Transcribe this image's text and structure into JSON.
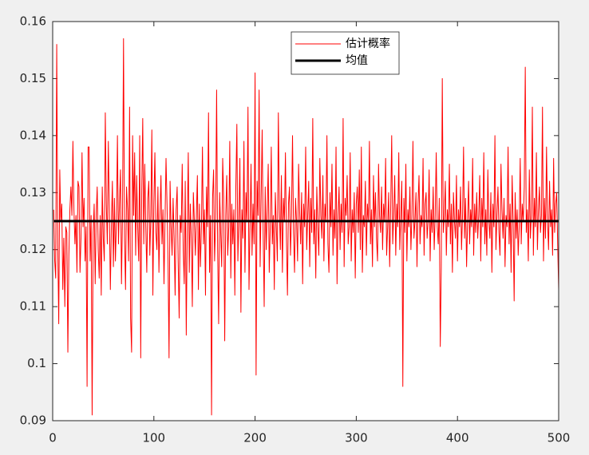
{
  "chart_data": {
    "type": "line",
    "xlim": [
      0,
      500
    ],
    "xticks": [
      0,
      100,
      200,
      300,
      400,
      500
    ],
    "ylim": [
      0.09,
      0.16
    ],
    "yticks": [
      0.09,
      0.1,
      0.11,
      0.12,
      0.13,
      0.14,
      0.15,
      0.16
    ],
    "legend": "north",
    "grid": false,
    "series": [
      {
        "name": "估计概率",
        "color": "#ff0000",
        "line_width": 1,
        "x": [
          1,
          2,
          3,
          4,
          5,
          6,
          7,
          8,
          9,
          10,
          11,
          12,
          13,
          14,
          15,
          16,
          17,
          18,
          19,
          20,
          21,
          22,
          23,
          24,
          25,
          26,
          27,
          28,
          29,
          30,
          31,
          32,
          33,
          34,
          35,
          36,
          37,
          38,
          39,
          40,
          41,
          42,
          43,
          44,
          45,
          46,
          47,
          48,
          49,
          50,
          51,
          52,
          53,
          54,
          55,
          56,
          57,
          58,
          59,
          60,
          61,
          62,
          63,
          64,
          65,
          66,
          67,
          68,
          69,
          70,
          71,
          72,
          73,
          74,
          75,
          76,
          77,
          78,
          79,
          80,
          81,
          82,
          83,
          84,
          85,
          86,
          87,
          88,
          89,
          90,
          91,
          92,
          93,
          94,
          95,
          96,
          97,
          98,
          99,
          100,
          101,
          102,
          103,
          104,
          105,
          106,
          107,
          108,
          109,
          110,
          111,
          112,
          113,
          114,
          115,
          116,
          117,
          118,
          119,
          120,
          121,
          122,
          123,
          124,
          125,
          126,
          127,
          128,
          129,
          130,
          131,
          132,
          133,
          134,
          135,
          136,
          137,
          138,
          139,
          140,
          141,
          142,
          143,
          144,
          145,
          146,
          147,
          148,
          149,
          150,
          151,
          152,
          153,
          154,
          155,
          156,
          157,
          158,
          159,
          160,
          161,
          162,
          163,
          164,
          165,
          166,
          167,
          168,
          169,
          170,
          171,
          172,
          173,
          174,
          175,
          176,
          177,
          178,
          179,
          180,
          181,
          182,
          183,
          184,
          185,
          186,
          187,
          188,
          189,
          190,
          191,
          192,
          193,
          194,
          195,
          196,
          197,
          198,
          199,
          200,
          201,
          202,
          203,
          204,
          205,
          206,
          207,
          208,
          209,
          210,
          211,
          212,
          213,
          214,
          215,
          216,
          217,
          218,
          219,
          220,
          221,
          222,
          223,
          224,
          225,
          226,
          227,
          228,
          229,
          230,
          231,
          232,
          233,
          234,
          235,
          236,
          237,
          238,
          239,
          240,
          241,
          242,
          243,
          244,
          245,
          246,
          247,
          248,
          249,
          250,
          251,
          252,
          253,
          254,
          255,
          256,
          257,
          258,
          259,
          260,
          261,
          262,
          263,
          264,
          265,
          266,
          267,
          268,
          269,
          270,
          271,
          272,
          273,
          274,
          275,
          276,
          277,
          278,
          279,
          280,
          281,
          282,
          283,
          284,
          285,
          286,
          287,
          288,
          289,
          290,
          291,
          292,
          293,
          294,
          295,
          296,
          297,
          298,
          299,
          300,
          301,
          302,
          303,
          304,
          305,
          306,
          307,
          308,
          309,
          310,
          311,
          312,
          313,
          314,
          315,
          316,
          317,
          318,
          319,
          320,
          321,
          322,
          323,
          324,
          325,
          326,
          327,
          328,
          329,
          330,
          331,
          332,
          333,
          334,
          335,
          336,
          337,
          338,
          339,
          340,
          341,
          342,
          343,
          344,
          345,
          346,
          347,
          348,
          349,
          350,
          351,
          352,
          353,
          354,
          355,
          356,
          357,
          358,
          359,
          360,
          361,
          362,
          363,
          364,
          365,
          366,
          367,
          368,
          369,
          370,
          371,
          372,
          373,
          374,
          375,
          376,
          377,
          378,
          379,
          380,
          381,
          382,
          383,
          384,
          385,
          386,
          387,
          388,
          389,
          390,
          391,
          392,
          393,
          394,
          395,
          396,
          397,
          398,
          399,
          400,
          401,
          402,
          403,
          404,
          405,
          406,
          407,
          408,
          409,
          410,
          411,
          412,
          413,
          414,
          415,
          416,
          417,
          418,
          419,
          420,
          421,
          422,
          423,
          424,
          425,
          426,
          427,
          428,
          429,
          430,
          431,
          432,
          433,
          434,
          435,
          436,
          437,
          438,
          439,
          440,
          441,
          442,
          443,
          444,
          445,
          446,
          447,
          448,
          449,
          450,
          451,
          452,
          453,
          454,
          455,
          456,
          457,
          458,
          459,
          460,
          461,
          462,
          463,
          464,
          465,
          466,
          467,
          468,
          469,
          470,
          471,
          472,
          473,
          474,
          475,
          476,
          477,
          478,
          479,
          480,
          481,
          482,
          483,
          484,
          485,
          486,
          487,
          488,
          489,
          490,
          491,
          492,
          493,
          494,
          495,
          496,
          497,
          498,
          499,
          500
        ],
        "values": [
          0.127,
          0.118,
          0.115,
          0.156,
          0.121,
          0.107,
          0.134,
          0.125,
          0.128,
          0.113,
          0.122,
          0.11,
          0.124,
          0.123,
          0.102,
          0.119,
          0.127,
          0.131,
          0.126,
          0.139,
          0.127,
          0.121,
          0.126,
          0.116,
          0.132,
          0.131,
          0.116,
          0.122,
          0.137,
          0.124,
          0.129,
          0.118,
          0.124,
          0.096,
          0.138,
          0.138,
          0.118,
          0.126,
          0.091,
          0.123,
          0.128,
          0.114,
          0.126,
          0.131,
          0.12,
          0.115,
          0.126,
          0.112,
          0.131,
          0.122,
          0.118,
          0.144,
          0.128,
          0.121,
          0.139,
          0.127,
          0.113,
          0.124,
          0.132,
          0.117,
          0.129,
          0.118,
          0.125,
          0.14,
          0.121,
          0.128,
          0.134,
          0.114,
          0.126,
          0.157,
          0.122,
          0.113,
          0.131,
          0.127,
          0.118,
          0.145,
          0.108,
          0.102,
          0.14,
          0.126,
          0.137,
          0.119,
          0.133,
          0.124,
          0.118,
          0.14,
          0.101,
          0.13,
          0.143,
          0.121,
          0.135,
          0.124,
          0.116,
          0.129,
          0.132,
          0.119,
          0.126,
          0.141,
          0.112,
          0.128,
          0.137,
          0.123,
          0.12,
          0.131,
          0.116,
          0.126,
          0.133,
          0.121,
          0.127,
          0.114,
          0.125,
          0.136,
          0.128,
          0.118,
          0.101,
          0.132,
          0.124,
          0.119,
          0.129,
          0.122,
          0.112,
          0.127,
          0.131,
          0.118,
          0.108,
          0.126,
          0.123,
          0.135,
          0.12,
          0.114,
          0.132,
          0.105,
          0.124,
          0.137,
          0.116,
          0.128,
          0.122,
          0.11,
          0.13,
          0.125,
          0.119,
          0.126,
          0.133,
          0.113,
          0.128,
          0.117,
          0.124,
          0.138,
          0.121,
          0.127,
          0.112,
          0.131,
          0.124,
          0.144,
          0.116,
          0.126,
          0.091,
          0.129,
          0.134,
          0.118,
          0.125,
          0.148,
          0.12,
          0.107,
          0.13,
          0.123,
          0.117,
          0.136,
          0.129,
          0.104,
          0.126,
          0.133,
          0.119,
          0.124,
          0.139,
          0.115,
          0.128,
          0.121,
          0.127,
          0.112,
          0.131,
          0.142,
          0.118,
          0.125,
          0.136,
          0.109,
          0.127,
          0.122,
          0.139,
          0.116,
          0.13,
          0.125,
          0.145,
          0.113,
          0.124,
          0.135,
          0.119,
          0.128,
          0.121,
          0.151,
          0.098,
          0.132,
          0.126,
          0.148,
          0.117,
          0.129,
          0.141,
          0.123,
          0.11,
          0.131,
          0.12,
          0.127,
          0.135,
          0.116,
          0.124,
          0.138,
          0.121,
          0.126,
          0.113,
          0.13,
          0.124,
          0.118,
          0.144,
          0.127,
          0.12,
          0.133,
          0.116,
          0.129,
          0.125,
          0.137,
          0.122,
          0.112,
          0.128,
          0.131,
          0.119,
          0.126,
          0.14,
          0.123,
          0.116,
          0.129,
          0.125,
          0.118,
          0.135,
          0.127,
          0.121,
          0.13,
          0.114,
          0.128,
          0.124,
          0.138,
          0.12,
          0.126,
          0.132,
          0.117,
          0.129,
          0.123,
          0.143,
          0.121,
          0.127,
          0.115,
          0.131,
          0.124,
          0.119,
          0.136,
          0.126,
          0.122,
          0.133,
          0.118,
          0.128,
          0.125,
          0.14,
          0.121,
          0.116,
          0.13,
          0.124,
          0.135,
          0.119,
          0.127,
          0.122,
          0.138,
          0.114,
          0.126,
          0.131,
          0.12,
          0.128,
          0.123,
          0.143,
          0.117,
          0.129,
          0.126,
          0.133,
          0.121,
          0.124,
          0.137,
          0.118,
          0.127,
          0.123,
          0.13,
          0.115,
          0.128,
          0.131,
          0.123,
          0.134,
          0.12,
          0.138,
          0.116,
          0.126,
          0.124,
          0.132,
          0.119,
          0.128,
          0.125,
          0.139,
          0.121,
          0.127,
          0.117,
          0.133,
          0.124,
          0.13,
          0.122,
          0.118,
          0.135,
          0.126,
          0.123,
          0.131,
          0.12,
          0.128,
          0.125,
          0.136,
          0.119,
          0.124,
          0.13,
          0.117,
          0.127,
          0.14,
          0.121,
          0.126,
          0.133,
          0.119,
          0.128,
          0.124,
          0.137,
          0.12,
          0.126,
          0.132,
          0.096,
          0.129,
          0.123,
          0.135,
          0.118,
          0.127,
          0.124,
          0.131,
          0.12,
          0.126,
          0.139,
          0.122,
          0.125,
          0.13,
          0.117,
          0.128,
          0.133,
          0.121,
          0.126,
          0.124,
          0.136,
          0.119,
          0.128,
          0.13,
          0.122,
          0.125,
          0.134,
          0.118,
          0.127,
          0.123,
          0.131,
          0.12,
          0.126,
          0.137,
          0.124,
          0.121,
          0.129,
          0.103,
          0.117,
          0.15,
          0.123,
          0.126,
          0.132,
          0.119,
          0.127,
          0.124,
          0.135,
          0.121,
          0.128,
          0.116,
          0.13,
          0.125,
          0.122,
          0.133,
          0.118,
          0.127,
          0.124,
          0.131,
          0.12,
          0.126,
          0.138,
          0.122,
          0.129,
          0.117,
          0.125,
          0.132,
          0.121,
          0.127,
          0.124,
          0.136,
          0.119,
          0.128,
          0.123,
          0.13,
          0.122,
          0.126,
          0.133,
          0.118,
          0.129,
          0.124,
          0.137,
          0.121,
          0.127,
          0.119,
          0.134,
          0.125,
          0.122,
          0.13,
          0.116,
          0.128,
          0.124,
          0.14,
          0.12,
          0.126,
          0.131,
          0.123,
          0.119,
          0.135,
          0.127,
          0.122,
          0.129,
          0.117,
          0.126,
          0.124,
          0.138,
          0.121,
          0.128,
          0.116,
          0.133,
          0.125,
          0.111,
          0.13,
          0.122,
          0.127,
          0.119,
          0.124,
          0.136,
          0.121,
          0.128,
          0.125,
          0.131,
          0.152,
          0.123,
          0.127,
          0.118,
          0.134,
          0.122,
          0.126,
          0.145,
          0.119,
          0.129,
          0.124,
          0.137,
          0.12,
          0.127,
          0.131,
          0.123,
          0.126,
          0.145,
          0.118,
          0.129,
          0.122,
          0.138,
          0.125,
          0.12,
          0.132,
          0.124,
          0.127,
          0.119,
          0.136,
          0.123,
          0.128,
          0.13,
          0.121,
          0.113
        ]
      },
      {
        "name": "均值",
        "color": "#000000",
        "line_width": 3,
        "x": [
          1,
          500
        ],
        "values": [
          0.125,
          0.125
        ]
      }
    ]
  }
}
